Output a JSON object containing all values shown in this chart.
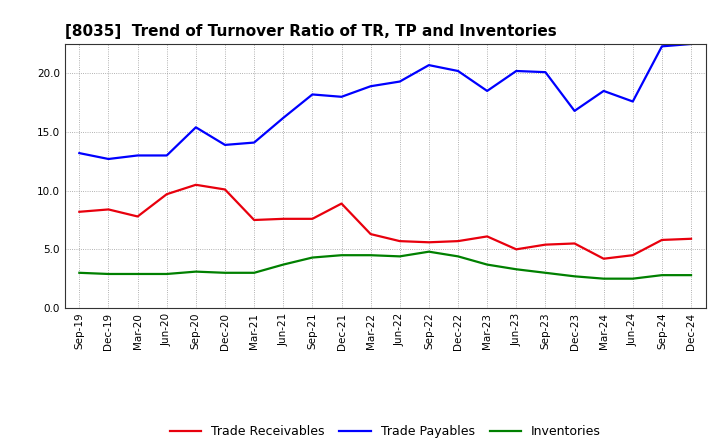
{
  "title": "[8035]  Trend of Turnover Ratio of TR, TP and Inventories",
  "x_labels": [
    "Sep-19",
    "Dec-19",
    "Mar-20",
    "Jun-20",
    "Sep-20",
    "Dec-20",
    "Mar-21",
    "Jun-21",
    "Sep-21",
    "Dec-21",
    "Mar-22",
    "Jun-22",
    "Sep-22",
    "Dec-22",
    "Mar-23",
    "Jun-23",
    "Sep-23",
    "Dec-23",
    "Mar-24",
    "Jun-24",
    "Sep-24",
    "Dec-24"
  ],
  "trade_receivables": [
    8.2,
    8.4,
    7.8,
    9.7,
    10.5,
    10.1,
    7.5,
    7.6,
    7.6,
    8.9,
    6.3,
    5.7,
    5.6,
    5.7,
    6.1,
    5.0,
    5.4,
    5.5,
    4.2,
    4.5,
    5.8,
    5.9
  ],
  "trade_payables": [
    13.2,
    12.7,
    13.0,
    13.0,
    15.4,
    13.9,
    14.1,
    16.2,
    18.2,
    18.0,
    18.9,
    19.3,
    20.7,
    20.2,
    18.5,
    20.2,
    20.1,
    16.8,
    18.5,
    17.6,
    22.3,
    22.5
  ],
  "inventories": [
    3.0,
    2.9,
    2.9,
    2.9,
    3.1,
    3.0,
    3.0,
    3.7,
    4.3,
    4.5,
    4.5,
    4.4,
    4.8,
    4.4,
    3.7,
    3.3,
    3.0,
    2.7,
    2.5,
    2.5,
    2.8,
    2.8
  ],
  "tr_color": "#e8000d",
  "tp_color": "#0000ff",
  "inv_color": "#008000",
  "ylim": [
    0.0,
    22.5
  ],
  "yticks": [
    0.0,
    5.0,
    10.0,
    15.0,
    20.0
  ],
  "bg_color": "#ffffff",
  "plot_bg_color": "#ffffff",
  "grid_color": "#999999",
  "line_width": 1.6,
  "legend_tr": "Trade Receivables",
  "legend_tp": "Trade Payables",
  "legend_inv": "Inventories",
  "title_fontsize": 11,
  "tick_fontsize": 7.5,
  "legend_fontsize": 9
}
